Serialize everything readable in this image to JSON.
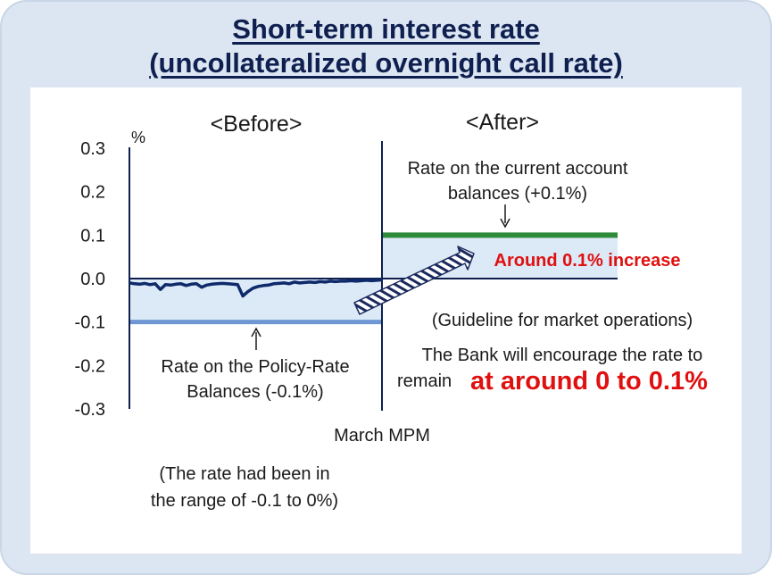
{
  "title_line1": "Short-term interest rate",
  "title_line2": "(uncollateralized overnight call rate)",
  "chart_data": {
    "type": "line",
    "y_unit_label": "%",
    "yticks": [
      "0.3",
      "0.2",
      "0.1",
      "0.0",
      "-0.1",
      "-0.2",
      "-0.3"
    ],
    "ylim": [
      -0.3,
      0.3
    ],
    "section_labels": {
      "before": "<Before>",
      "after": "<After>"
    },
    "xlabel": "March MPM",
    "series": [
      {
        "values": [
          -0.01,
          -0.012,
          -0.013,
          -0.011,
          -0.014,
          -0.012,
          -0.025,
          -0.014,
          -0.015,
          -0.013,
          -0.012,
          -0.016,
          -0.013,
          -0.012,
          -0.02,
          -0.015,
          -0.013,
          -0.012,
          -0.011,
          -0.012,
          -0.013,
          -0.014,
          -0.04,
          -0.03,
          -0.022,
          -0.018,
          -0.016,
          -0.015,
          -0.012,
          -0.011,
          -0.01,
          -0.012,
          -0.008,
          -0.01,
          -0.009,
          -0.008,
          -0.009,
          -0.007,
          -0.008,
          -0.006,
          -0.007,
          -0.006,
          -0.006,
          -0.005,
          -0.006,
          -0.005,
          -0.004,
          -0.005,
          -0.004,
          -0.003
        ]
      }
    ],
    "reference_levels": {
      "policy_rate_balances": -0.1,
      "current_account_balances": 0.1,
      "after_zero_line": 0.0
    },
    "annotations": {
      "policy_rate_line1": "Rate on the Policy-Rate",
      "policy_rate_line2": "Balances (-0.1%)",
      "current_account_line1": "Rate on the current account",
      "current_account_line2": "balances (+0.1%)",
      "increase": "Around 0.1% increase",
      "guideline": "(Guideline for market operations)",
      "encourage_line1": "The Bank will encourage the rate to",
      "encourage_line2_prefix": "remain",
      "encourage_line2_emph": "at around 0 to 0.1%",
      "range_note_line1": "(The rate had been in",
      "range_note_line2": "the range of -0.1 to 0%)"
    },
    "colors": {
      "call_rate": "#0f2a6b",
      "policy_rate_line": "#6f97d3",
      "current_account_line": "#2e8b3a",
      "shaded_band": "#dce9f6",
      "increase_text": "#e01010",
      "axis": "#0f1f4f"
    }
  }
}
